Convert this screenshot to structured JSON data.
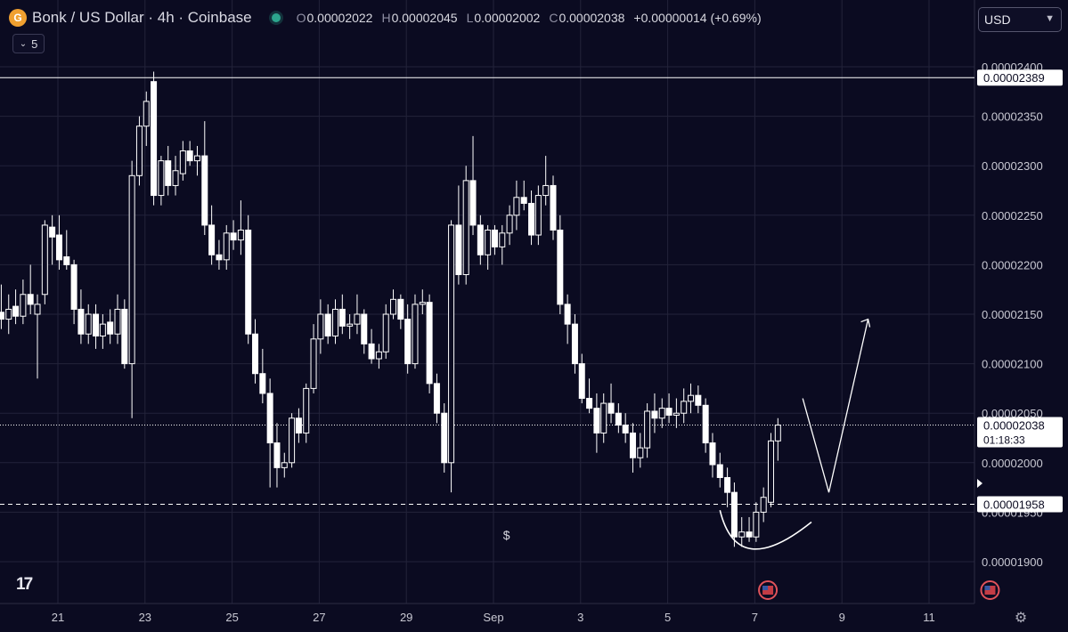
{
  "header": {
    "coin_icon_glyph": "G",
    "title": "Bonk / US Dollar · 4h · Coinbase",
    "ohlc": {
      "open_label": "O",
      "open": "0.00002022",
      "high_label": "H",
      "high": "0.00002045",
      "low_label": "L",
      "low": "0.00002002",
      "close_label": "C",
      "close": "0.00002038",
      "change": "+0.00000014 (+0.69%)"
    }
  },
  "toolbar": {
    "indicator_count": "5",
    "currency": "USD",
    "logo": "17"
  },
  "colors": {
    "background": "#0b0b21",
    "grid": "#23233a",
    "candle": "#ffffff",
    "axis_text": "#c8c8d2"
  },
  "chart_data": {
    "type": "candlestick",
    "x_tick_labels": [
      "21",
      "23",
      "25",
      "27",
      "29",
      "Sep",
      "3",
      "5",
      "7",
      "9",
      "11"
    ],
    "y_tick_labels": [
      "0.00002400",
      "0.00002350",
      "0.00002300",
      "0.00002250",
      "0.00002200",
      "0.00002150",
      "0.00002100",
      "0.00002050",
      "0.00002000",
      "0.00001950",
      "0.00001900"
    ],
    "y_tick_values": [
      2.4e-05,
      2.35e-05,
      2.3e-05,
      2.25e-05,
      2.2e-05,
      2.15e-05,
      2.1e-05,
      2.05e-05,
      2e-05,
      1.95e-05,
      1.9e-05
    ],
    "ylim": [
      1.875e-05,
      2.415e-05
    ],
    "xlim": [
      19.6,
      41.8
    ],
    "candles": [
      {
        "x": 19.7,
        "o": 2.152,
        "h": 2.18,
        "l": 2.135,
        "c": 2.145
      },
      {
        "x": 19.87,
        "o": 2.145,
        "h": 2.17,
        "l": 2.13,
        "c": 2.155
      },
      {
        "x": 20.03,
        "o": 2.158,
        "h": 2.175,
        "l": 2.14,
        "c": 2.148
      },
      {
        "x": 20.2,
        "o": 2.148,
        "h": 2.185,
        "l": 2.14,
        "c": 2.17
      },
      {
        "x": 20.37,
        "o": 2.17,
        "h": 2.2,
        "l": 2.15,
        "c": 2.16
      },
      {
        "x": 20.53,
        "o": 2.15,
        "h": 2.17,
        "l": 2.085,
        "c": 2.16
      },
      {
        "x": 20.7,
        "o": 2.17,
        "h": 2.245,
        "l": 2.16,
        "c": 2.24
      },
      {
        "x": 20.87,
        "o": 2.238,
        "h": 2.25,
        "l": 2.2,
        "c": 2.228
      },
      {
        "x": 21.03,
        "o": 2.23,
        "h": 2.25,
        "l": 2.195,
        "c": 2.205
      },
      {
        "x": 21.2,
        "o": 2.208,
        "h": 2.235,
        "l": 2.195,
        "c": 2.2
      },
      {
        "x": 21.37,
        "o": 2.2,
        "h": 2.205,
        "l": 2.14,
        "c": 2.155
      },
      {
        "x": 21.53,
        "o": 2.155,
        "h": 2.175,
        "l": 2.12,
        "c": 2.13
      },
      {
        "x": 21.7,
        "o": 2.13,
        "h": 2.16,
        "l": 2.12,
        "c": 2.15
      },
      {
        "x": 21.87,
        "o": 2.15,
        "h": 2.16,
        "l": 2.115,
        "c": 2.128
      },
      {
        "x": 22.03,
        "o": 2.128,
        "h": 2.15,
        "l": 2.115,
        "c": 2.14
      },
      {
        "x": 22.2,
        "o": 2.142,
        "h": 2.155,
        "l": 2.12,
        "c": 2.13
      },
      {
        "x": 22.37,
        "o": 2.13,
        "h": 2.17,
        "l": 2.12,
        "c": 2.155
      },
      {
        "x": 22.53,
        "o": 2.155,
        "h": 2.165,
        "l": 2.095,
        "c": 2.1
      },
      {
        "x": 22.7,
        "o": 2.1,
        "h": 2.305,
        "l": 2.045,
        "c": 2.29
      },
      {
        "x": 22.87,
        "o": 2.29,
        "h": 2.35,
        "l": 2.28,
        "c": 2.34
      },
      {
        "x": 23.03,
        "o": 2.34,
        "h": 2.375,
        "l": 2.32,
        "c": 2.365
      },
      {
        "x": 23.2,
        "o": 2.385,
        "h": 2.395,
        "l": 2.26,
        "c": 2.27
      },
      {
        "x": 23.37,
        "o": 2.27,
        "h": 2.31,
        "l": 2.26,
        "c": 2.305
      },
      {
        "x": 23.53,
        "o": 2.305,
        "h": 2.32,
        "l": 2.27,
        "c": 2.28
      },
      {
        "x": 23.7,
        "o": 2.28,
        "h": 2.31,
        "l": 2.27,
        "c": 2.295
      },
      {
        "x": 23.87,
        "o": 2.292,
        "h": 2.325,
        "l": 2.285,
        "c": 2.315
      },
      {
        "x": 24.03,
        "o": 2.315,
        "h": 2.325,
        "l": 2.3,
        "c": 2.305
      },
      {
        "x": 24.2,
        "o": 2.305,
        "h": 2.32,
        "l": 2.29,
        "c": 2.31
      },
      {
        "x": 24.37,
        "o": 2.31,
        "h": 2.345,
        "l": 2.23,
        "c": 2.24
      },
      {
        "x": 24.53,
        "o": 2.24,
        "h": 2.26,
        "l": 2.2,
        "c": 2.21
      },
      {
        "x": 24.7,
        "o": 2.21,
        "h": 2.225,
        "l": 2.195,
        "c": 2.205
      },
      {
        "x": 24.87,
        "o": 2.205,
        "h": 2.24,
        "l": 2.195,
        "c": 2.232
      },
      {
        "x": 25.03,
        "o": 2.232,
        "h": 2.245,
        "l": 2.215,
        "c": 2.225
      },
      {
        "x": 25.2,
        "o": 2.225,
        "h": 2.265,
        "l": 2.21,
        "c": 2.235
      },
      {
        "x": 25.37,
        "o": 2.235,
        "h": 2.25,
        "l": 2.12,
        "c": 2.13
      },
      {
        "x": 25.53,
        "o": 2.13,
        "h": 2.145,
        "l": 2.08,
        "c": 2.09
      },
      {
        "x": 25.7,
        "o": 2.09,
        "h": 2.115,
        "l": 2.06,
        "c": 2.07
      },
      {
        "x": 25.87,
        "o": 2.07,
        "h": 2.085,
        "l": 1.975,
        "c": 2.02
      },
      {
        "x": 26.03,
        "o": 2.02,
        "h": 2.04,
        "l": 1.975,
        "c": 1.995
      },
      {
        "x": 26.2,
        "o": 1.995,
        "h": 2.01,
        "l": 1.985,
        "c": 2.0
      },
      {
        "x": 26.37,
        "o": 2.0,
        "h": 2.05,
        "l": 1.995,
        "c": 2.045
      },
      {
        "x": 26.53,
        "o": 2.045,
        "h": 2.055,
        "l": 2.02,
        "c": 2.03
      },
      {
        "x": 26.7,
        "o": 2.03,
        "h": 2.08,
        "l": 2.02,
        "c": 2.075
      },
      {
        "x": 26.87,
        "o": 2.075,
        "h": 2.14,
        "l": 2.07,
        "c": 2.125
      },
      {
        "x": 27.03,
        "o": 2.125,
        "h": 2.165,
        "l": 2.11,
        "c": 2.15
      },
      {
        "x": 27.2,
        "o": 2.15,
        "h": 2.16,
        "l": 2.12,
        "c": 2.128
      },
      {
        "x": 27.37,
        "o": 2.128,
        "h": 2.165,
        "l": 2.12,
        "c": 2.155
      },
      {
        "x": 27.53,
        "o": 2.155,
        "h": 2.17,
        "l": 2.13,
        "c": 2.138
      },
      {
        "x": 27.7,
        "o": 2.138,
        "h": 2.15,
        "l": 2.125,
        "c": 2.14
      },
      {
        "x": 27.87,
        "o": 2.14,
        "h": 2.17,
        "l": 2.13,
        "c": 2.15
      },
      {
        "x": 28.03,
        "o": 2.15,
        "h": 2.155,
        "l": 2.11,
        "c": 2.12
      },
      {
        "x": 28.2,
        "o": 2.12,
        "h": 2.135,
        "l": 2.1,
        "c": 2.105
      },
      {
        "x": 28.37,
        "o": 2.105,
        "h": 2.12,
        "l": 2.095,
        "c": 2.112
      },
      {
        "x": 28.53,
        "o": 2.112,
        "h": 2.16,
        "l": 2.105,
        "c": 2.15
      },
      {
        "x": 28.7,
        "o": 2.15,
        "h": 2.175,
        "l": 2.145,
        "c": 2.165
      },
      {
        "x": 28.87,
        "o": 2.165,
        "h": 2.17,
        "l": 2.135,
        "c": 2.145
      },
      {
        "x": 29.03,
        "o": 2.145,
        "h": 2.16,
        "l": 2.09,
        "c": 2.1
      },
      {
        "x": 29.2,
        "o": 2.1,
        "h": 2.17,
        "l": 2.095,
        "c": 2.16
      },
      {
        "x": 29.37,
        "o": 2.16,
        "h": 2.175,
        "l": 2.15,
        "c": 2.162
      },
      {
        "x": 29.53,
        "o": 2.162,
        "h": 2.17,
        "l": 2.07,
        "c": 2.08
      },
      {
        "x": 29.7,
        "o": 2.08,
        "h": 2.09,
        "l": 2.04,
        "c": 2.05
      },
      {
        "x": 29.87,
        "o": 2.05,
        "h": 2.06,
        "l": 1.99,
        "c": 2.0
      },
      {
        "x": 30.03,
        "o": 2.0,
        "h": 2.245,
        "l": 1.97,
        "c": 2.24
      },
      {
        "x": 30.2,
        "o": 2.24,
        "h": 2.28,
        "l": 2.18,
        "c": 2.19
      },
      {
        "x": 30.37,
        "o": 2.19,
        "h": 2.3,
        "l": 2.18,
        "c": 2.285
      },
      {
        "x": 30.53,
        "o": 2.285,
        "h": 2.33,
        "l": 2.23,
        "c": 2.24
      },
      {
        "x": 30.7,
        "o": 2.24,
        "h": 2.25,
        "l": 2.2,
        "c": 2.21
      },
      {
        "x": 30.87,
        "o": 2.21,
        "h": 2.24,
        "l": 2.195,
        "c": 2.235
      },
      {
        "x": 31.03,
        "o": 2.235,
        "h": 2.24,
        "l": 2.21,
        "c": 2.218
      },
      {
        "x": 31.2,
        "o": 2.218,
        "h": 2.24,
        "l": 2.2,
        "c": 2.232
      },
      {
        "x": 31.37,
        "o": 2.232,
        "h": 2.26,
        "l": 2.22,
        "c": 2.25
      },
      {
        "x": 31.53,
        "o": 2.25,
        "h": 2.285,
        "l": 2.235,
        "c": 2.268
      },
      {
        "x": 31.7,
        "o": 2.268,
        "h": 2.285,
        "l": 2.255,
        "c": 2.262
      },
      {
        "x": 31.87,
        "o": 2.262,
        "h": 2.275,
        "l": 2.22,
        "c": 2.23
      },
      {
        "x": 32.03,
        "o": 2.23,
        "h": 2.28,
        "l": 2.22,
        "c": 2.27
      },
      {
        "x": 32.2,
        "o": 2.27,
        "h": 2.31,
        "l": 2.26,
        "c": 2.28
      },
      {
        "x": 32.37,
        "o": 2.28,
        "h": 2.29,
        "l": 2.225,
        "c": 2.235
      },
      {
        "x": 32.53,
        "o": 2.235,
        "h": 2.25,
        "l": 2.15,
        "c": 2.16
      },
      {
        "x": 32.7,
        "o": 2.16,
        "h": 2.17,
        "l": 2.12,
        "c": 2.14
      },
      {
        "x": 32.87,
        "o": 2.14,
        "h": 2.15,
        "l": 2.09,
        "c": 2.1
      },
      {
        "x": 33.03,
        "o": 2.1,
        "h": 2.11,
        "l": 2.06,
        "c": 2.065
      },
      {
        "x": 33.2,
        "o": 2.065,
        "h": 2.085,
        "l": 2.05,
        "c": 2.055
      },
      {
        "x": 33.37,
        "o": 2.055,
        "h": 2.07,
        "l": 2.01,
        "c": 2.03
      },
      {
        "x": 33.53,
        "o": 2.03,
        "h": 2.07,
        "l": 2.02,
        "c": 2.06
      },
      {
        "x": 33.7,
        "o": 2.06,
        "h": 2.08,
        "l": 2.04,
        "c": 2.05
      },
      {
        "x": 33.87,
        "o": 2.05,
        "h": 2.06,
        "l": 2.03,
        "c": 2.038
      },
      {
        "x": 34.03,
        "o": 2.038,
        "h": 2.05,
        "l": 2.02,
        "c": 2.03
      },
      {
        "x": 34.2,
        "o": 2.03,
        "h": 2.04,
        "l": 1.99,
        "c": 2.005
      },
      {
        "x": 34.37,
        "o": 2.005,
        "h": 2.03,
        "l": 1.995,
        "c": 2.015
      },
      {
        "x": 34.53,
        "o": 2.015,
        "h": 2.06,
        "l": 2.005,
        "c": 2.052
      },
      {
        "x": 34.7,
        "o": 2.052,
        "h": 2.07,
        "l": 2.03,
        "c": 2.045
      },
      {
        "x": 34.87,
        "o": 2.045,
        "h": 2.065,
        "l": 2.035,
        "c": 2.055
      },
      {
        "x": 35.03,
        "o": 2.055,
        "h": 2.07,
        "l": 2.04,
        "c": 2.048
      },
      {
        "x": 35.2,
        "o": 2.048,
        "h": 2.065,
        "l": 2.035,
        "c": 2.05
      },
      {
        "x": 35.37,
        "o": 2.05,
        "h": 2.075,
        "l": 2.04,
        "c": 2.062
      },
      {
        "x": 35.53,
        "o": 2.062,
        "h": 2.08,
        "l": 2.05,
        "c": 2.068
      },
      {
        "x": 35.7,
        "o": 2.068,
        "h": 2.078,
        "l": 2.05,
        "c": 2.058
      },
      {
        "x": 35.87,
        "o": 2.058,
        "h": 2.065,
        "l": 2.01,
        "c": 2.02
      },
      {
        "x": 36.03,
        "o": 2.02,
        "h": 2.03,
        "l": 1.985,
        "c": 1.998
      },
      {
        "x": 36.2,
        "o": 1.998,
        "h": 2.01,
        "l": 1.975,
        "c": 1.985
      },
      {
        "x": 36.37,
        "o": 1.985,
        "h": 1.995,
        "l": 1.955,
        "c": 1.97
      },
      {
        "x": 36.53,
        "o": 1.97,
        "h": 1.98,
        "l": 1.915,
        "c": 1.925
      },
      {
        "x": 36.7,
        "o": 1.925,
        "h": 1.945,
        "l": 1.915,
        "c": 1.93
      },
      {
        "x": 36.87,
        "o": 1.93,
        "h": 1.945,
        "l": 1.92,
        "c": 1.925
      },
      {
        "x": 37.03,
        "o": 1.925,
        "h": 1.96,
        "l": 1.92,
        "c": 1.95
      },
      {
        "x": 37.2,
        "o": 1.95,
        "h": 1.975,
        "l": 1.94,
        "c": 1.965
      },
      {
        "x": 37.37,
        "o": 1.96,
        "h": 2.03,
        "l": 1.955,
        "c": 2.022
      },
      {
        "x": 37.53,
        "o": 2.022,
        "h": 2.045,
        "l": 2.002,
        "c": 2.038
      }
    ],
    "horizontal_lines": [
      {
        "value": 2.389e-05,
        "label": "0.00002389",
        "style": "solid"
      },
      {
        "value": 2.038e-05,
        "label": "0.00002038",
        "style": "dotted",
        "countdown": "01:18:33"
      },
      {
        "value": 1.958e-05,
        "label": "0.00001958",
        "style": "dashed"
      }
    ],
    "annotations": {
      "dollar_marker": "$",
      "projection_path": [
        {
          "x": 38.1,
          "y": 2.065
        },
        {
          "x": 38.7,
          "y": 1.97
        },
        {
          "x": 39.6,
          "y": 2.145
        }
      ],
      "arc_label": "",
      "event_markers": [
        37.3,
        42.4
      ]
    }
  }
}
